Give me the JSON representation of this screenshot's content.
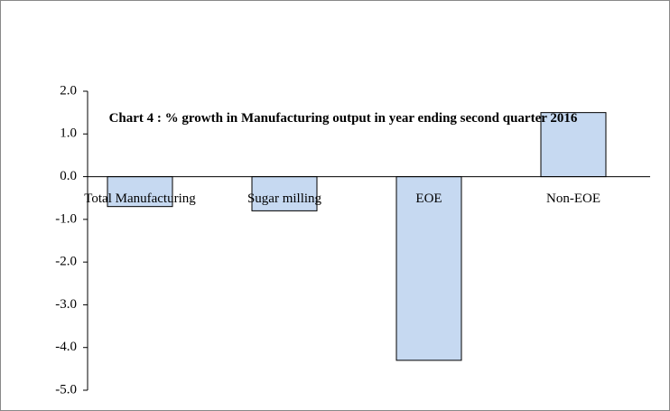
{
  "chart_data": {
    "type": "bar",
    "title": "Chart 4 : % growth in Manufacturing output in year ending second quarter 2016",
    "categories": [
      "Total Manufacturing",
      "Sugar milling",
      "EOE",
      "Non-EOE"
    ],
    "values": [
      -0.7,
      -0.8,
      -4.3,
      1.5
    ],
    "color": "#c6d9f1",
    "ylim": [
      -5,
      2
    ],
    "yticks": [
      {
        "value": 2,
        "label": "2.0"
      },
      {
        "value": 1,
        "label": "1.0"
      },
      {
        "value": 0,
        "label": "0.0"
      },
      {
        "value": -1,
        "label": "-1.0"
      },
      {
        "value": -2,
        "label": "-2.0"
      },
      {
        "value": -3,
        "label": "-3.0"
      },
      {
        "value": -4,
        "label": "-4.0"
      },
      {
        "value": -5,
        "label": "-5.0"
      }
    ],
    "grid": false
  }
}
